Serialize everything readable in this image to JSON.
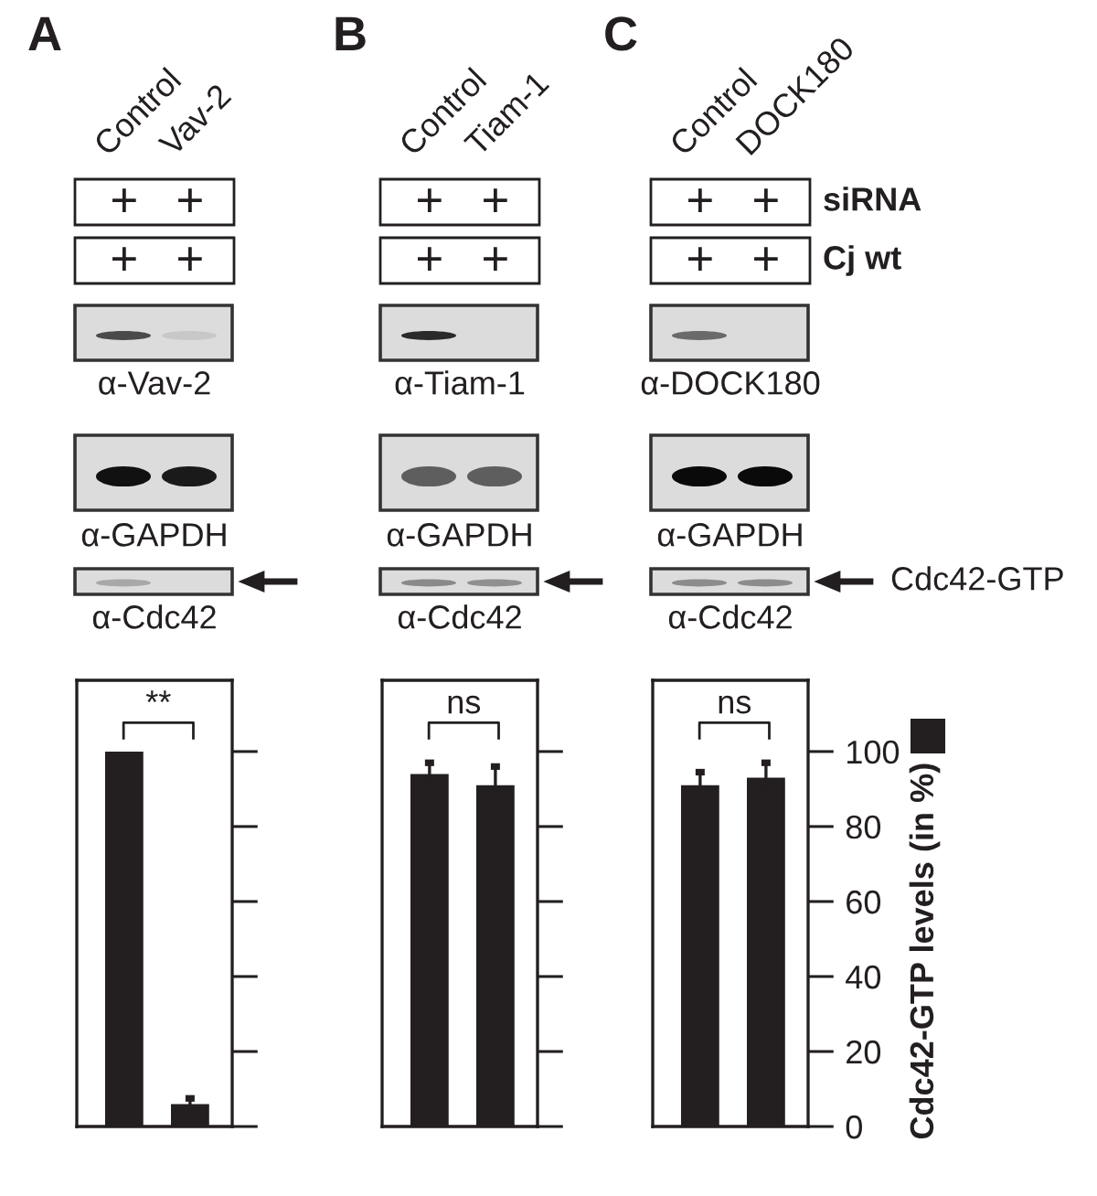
{
  "chart_data": [
    {
      "type": "bar",
      "title": "A",
      "categories": [
        "Control",
        "Vav-2"
      ],
      "series": [
        {
          "color": "#231f20",
          "values": [
            100,
            6
          ],
          "errors": [
            null,
            1.5
          ],
          "axis": "y2"
        }
      ],
      "y2lim": [
        0,
        119
      ],
      "y2ticks": [
        0,
        20,
        40,
        60,
        80,
        100
      ],
      "tick_labels": "x",
      "annotations": [
        "+",
        "+",
        "+",
        "+",
        "α-Vav-2",
        "α-GAPDH",
        "α-Cdc42",
        "**"
      ]
    },
    {
      "type": "bar",
      "title": "B",
      "categories": [
        "Control",
        "Tiam-1"
      ],
      "series": [
        {
          "color": "#231f20",
          "values": [
            94,
            91
          ],
          "errors": [
            3,
            5
          ],
          "axis": "y2"
        }
      ],
      "y2lim": [
        0,
        119
      ],
      "y2ticks": [
        0,
        20,
        40,
        60,
        80,
        100
      ],
      "tick_labels": "x",
      "annotations": [
        "+",
        "+",
        "+",
        "+",
        "α-Tiam-1",
        "α-GAPDH",
        "α-Cdc42",
        "ns"
      ]
    },
    {
      "type": "bar",
      "title": "C",
      "categories": [
        "Control",
        "DOCK180"
      ],
      "series": [
        {
          "color": "#231f20",
          "values": [
            91,
            93
          ],
          "errors": [
            3.5,
            4
          ],
          "axis": "y2"
        }
      ],
      "y2lim": [
        0,
        119
      ],
      "y2ticks": [
        0,
        20,
        40,
        60,
        80,
        100
      ],
      "y2label": "Cdc42-GTP levels (in %)",
      "annotations": [
        "+",
        "+",
        "+",
        "+",
        "siRNA",
        "Cj wt",
        "α-DOCK180",
        "α-GAPDH",
        "α-Cdc42",
        "Cdc42-GTP",
        "ns"
      ]
    }
  ]
}
